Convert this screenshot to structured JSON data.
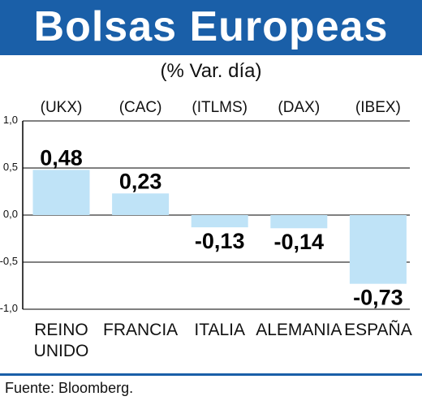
{
  "header": {
    "title": "Bolsas Europeas",
    "subtitle": "(% Var. día)"
  },
  "source": "Fuente: Bloomberg.",
  "colors": {
    "header_bg": "#1a5fa8",
    "bar_fill": "#bfe3f7",
    "axis": "#000000"
  },
  "chart_data": {
    "type": "bar",
    "title": "Bolsas Europeas",
    "subtitle": "(% Var. día)",
    "categories": [
      [
        "REINO",
        "UNIDO"
      ],
      [
        "FRANCIA"
      ],
      [
        "ITALIA"
      ],
      [
        "ALEMANIA"
      ],
      [
        "ESPAÑA"
      ]
    ],
    "index_codes": [
      "(UKX)",
      "(CAC)",
      "(ITLMS)",
      "(DAX)",
      "(IBEX)"
    ],
    "values": [
      0.48,
      0.23,
      -0.13,
      -0.14,
      -0.73
    ],
    "value_labels": [
      "0,48",
      "0,23",
      "-0,13",
      "-0,14",
      "-0,73"
    ],
    "yticks": [
      1.0,
      0.5,
      0.0,
      -0.5,
      -1.0
    ],
    "ytick_labels": [
      "1,0",
      "0,5",
      "0,0",
      "-0,5",
      "-1,0"
    ],
    "ylim": [
      -1.0,
      1.0
    ],
    "grid": true
  }
}
